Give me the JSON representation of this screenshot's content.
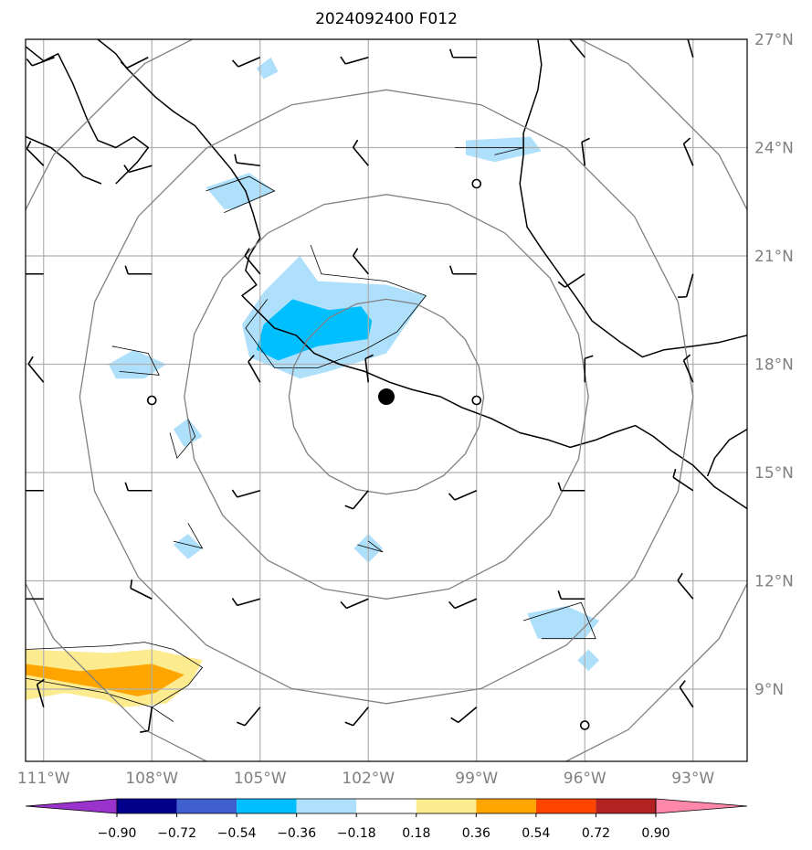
{
  "title": "2024092400 F012",
  "colors": {
    "gridline": "#b0b0b0",
    "range_ring": "#808080",
    "coastline": "#000000",
    "axis_label": "#808080",
    "center_marker": "#000000"
  },
  "lat_labels": [
    "27°N",
    "24°N",
    "21°N",
    "18°N",
    "15°N",
    "12°N",
    "9°N"
  ],
  "lon_labels": [
    "111°W",
    "108°W",
    "105°W",
    "102°W",
    "99°W",
    "96°W",
    "93°W"
  ],
  "colorbar": {
    "colors": [
      "#9933cc",
      "#00008b",
      "#3f5fcf",
      "#00bfff",
      "#afe0fb",
      "#ffffff",
      "#fdeb90",
      "#ffa500",
      "#ff4500",
      "#b22222",
      "#ff88aa"
    ],
    "tick_labels": [
      "−0.90",
      "−0.72",
      "−0.54",
      "−0.36",
      "−0.18",
      "0.18",
      "0.36",
      "0.54",
      "0.72",
      "0.90"
    ]
  },
  "chart_data": {
    "type": "map",
    "title": "2024092400 F012",
    "lon_range": [
      -111.5,
      -91.5
    ],
    "lat_range": [
      7,
      27
    ],
    "lon_ticks": [
      -111,
      -108,
      -105,
      -102,
      -99,
      -96,
      -93
    ],
    "lat_ticks": [
      27,
      24,
      21,
      18,
      15,
      12,
      9
    ],
    "center": {
      "lon": -101.5,
      "lat": 17.1
    },
    "range_ring_radii_deg": [
      2.7,
      5.6,
      8.5,
      11.4
    ],
    "contour_levels": [
      -0.9,
      -0.72,
      -0.54,
      -0.36,
      -0.18,
      0.18,
      0.36,
      0.54,
      0.72,
      0.9
    ],
    "station_circles": [
      {
        "lon": -99,
        "lat": 23
      },
      {
        "lon": -108,
        "lat": 17
      },
      {
        "lon": -99,
        "lat": 17
      },
      {
        "lon": -96,
        "lat": 8
      }
    ],
    "shaded_regions": [
      {
        "level": -0.18,
        "color": "#afe0fb",
        "lonlat": [
          [
            -105.1,
            26.2
          ],
          [
            -104.7,
            26.5
          ],
          [
            -104.5,
            26.1
          ],
          [
            -104.9,
            25.9
          ]
        ]
      },
      {
        "level": -0.18,
        "color": "#afe0fb",
        "lonlat": [
          [
            -106.5,
            22.9
          ],
          [
            -105.3,
            23.3
          ],
          [
            -104.6,
            22.8
          ],
          [
            -105.7,
            22.3
          ],
          [
            -106.0,
            22.3
          ]
        ]
      },
      {
        "level": -0.18,
        "color": "#afe0fb",
        "lonlat": [
          [
            -99.3,
            24.2
          ],
          [
            -97.5,
            24.3
          ],
          [
            -97.2,
            23.9
          ],
          [
            -98.5,
            23.6
          ],
          [
            -99.3,
            23.8
          ]
        ]
      },
      {
        "level": -0.18,
        "color": "#afe0fb",
        "lonlat": [
          [
            -103.9,
            21.0
          ],
          [
            -103.4,
            20.3
          ],
          [
            -101.5,
            20.2
          ],
          [
            -100.4,
            19.9
          ],
          [
            -101.5,
            18.3
          ],
          [
            -103.1,
            17.8
          ],
          [
            -103.9,
            17.6
          ],
          [
            -105.3,
            18.2
          ],
          [
            -105.5,
            19.1
          ],
          [
            -104.9,
            20.0
          ]
        ]
      },
      {
        "level": -0.18,
        "color": "#afe0fb",
        "lonlat": [
          [
            -109.2,
            18.0
          ],
          [
            -108.5,
            18.4
          ],
          [
            -107.6,
            18.0
          ],
          [
            -108.2,
            17.6
          ],
          [
            -109.0,
            17.6
          ]
        ]
      },
      {
        "level": -0.18,
        "color": "#afe0fb",
        "lonlat": [
          [
            -107.4,
            16.2
          ],
          [
            -107.0,
            16.5
          ],
          [
            -106.6,
            16.0
          ],
          [
            -107.1,
            15.7
          ]
        ]
      },
      {
        "level": -0.18,
        "color": "#afe0fb",
        "lonlat": [
          [
            -107.4,
            13.0
          ],
          [
            -107.0,
            13.3
          ],
          [
            -106.6,
            12.9
          ],
          [
            -107.0,
            12.6
          ]
        ]
      },
      {
        "level": -0.18,
        "color": "#afe0fb",
        "lonlat": [
          [
            -102.4,
            12.9
          ],
          [
            -102.0,
            13.3
          ],
          [
            -101.6,
            12.9
          ],
          [
            -102.0,
            12.5
          ]
        ]
      },
      {
        "level": -0.18,
        "color": "#afe0fb",
        "lonlat": [
          [
            -97.6,
            11.1
          ],
          [
            -96.5,
            11.3
          ],
          [
            -95.6,
            10.9
          ],
          [
            -96.0,
            10.4
          ],
          [
            -97.3,
            10.4
          ]
        ]
      },
      {
        "level": -0.18,
        "color": "#afe0fb",
        "lonlat": [
          [
            -96.2,
            9.8
          ],
          [
            -95.9,
            10.1
          ],
          [
            -95.6,
            9.8
          ],
          [
            -95.9,
            9.5
          ]
        ]
      },
      {
        "level": -0.36,
        "color": "#00bfff",
        "lonlat": [
          [
            -104.1,
            19.8
          ],
          [
            -103.1,
            19.5
          ],
          [
            -102.2,
            19.6
          ],
          [
            -101.9,
            19.2
          ],
          [
            -102.0,
            18.7
          ],
          [
            -103.4,
            18.5
          ],
          [
            -104.5,
            18.1
          ],
          [
            -105.1,
            18.4
          ],
          [
            -104.9,
            19.1
          ]
        ]
      },
      {
        "level": 0.36,
        "color": "#fdeb90",
        "lonlat": [
          [
            -111.5,
            10.1
          ],
          [
            -109.2,
            10.0
          ],
          [
            -108.0,
            10.1
          ],
          [
            -106.6,
            9.8
          ],
          [
            -106.9,
            9.2
          ],
          [
            -107.6,
            8.6
          ],
          [
            -108.8,
            8.5
          ],
          [
            -109.3,
            8.7
          ],
          [
            -110.4,
            8.9
          ],
          [
            -111.5,
            8.7
          ]
        ]
      },
      {
        "level": 0.54,
        "color": "#ffa500",
        "lonlat": [
          [
            -111.5,
            9.7
          ],
          [
            -110.0,
            9.5
          ],
          [
            -108.0,
            9.7
          ],
          [
            -107.1,
            9.4
          ],
          [
            -107.9,
            8.9
          ],
          [
            -108.4,
            8.8
          ],
          [
            -109.3,
            9.0
          ],
          [
            -110.4,
            9.2
          ],
          [
            -111.5,
            9.4
          ]
        ]
      }
    ],
    "wind_barbs": [
      {
        "lon": -110.7,
        "lat": 26.5,
        "u": 8,
        "v": 3
      },
      {
        "lon": -108.1,
        "lat": 26.5,
        "u": 6,
        "v": 3
      },
      {
        "lon": -105.0,
        "lat": 26.5,
        "u": 7,
        "v": 3
      },
      {
        "lon": -102.0,
        "lat": 26.5,
        "u": 7,
        "v": 2
      },
      {
        "lon": -99.0,
        "lat": 26.5,
        "u": 8,
        "v": 0
      },
      {
        "lon": -96.0,
        "lat": 26.5,
        "u": 5,
        "v": -6
      },
      {
        "lon": -93.0,
        "lat": 26.5,
        "u": 2,
        "v": -7
      },
      {
        "lon": -111.0,
        "lat": 23.5,
        "u": 6,
        "v": -6
      },
      {
        "lon": -108.0,
        "lat": 23.5,
        "u": 7,
        "v": 2
      },
      {
        "lon": -105.0,
        "lat": 23.5,
        "u": 8,
        "v": -1
      },
      {
        "lon": -102.0,
        "lat": 23.5,
        "u": 5,
        "v": -6
      },
      {
        "lon": -96.0,
        "lat": 23.5,
        "u": 1,
        "v": -8
      },
      {
        "lon": -93.0,
        "lat": 23.5,
        "u": 3,
        "v": -7
      },
      {
        "lon": -111.0,
        "lat": 20.5,
        "u": 8,
        "v": 0
      },
      {
        "lon": -108.0,
        "lat": 20.5,
        "u": 8,
        "v": 0
      },
      {
        "lon": -105.0,
        "lat": 20.5,
        "u": 5,
        "v": -6
      },
      {
        "lon": -102.0,
        "lat": 20.5,
        "u": 5,
        "v": -6
      },
      {
        "lon": -99.0,
        "lat": 20.5,
        "u": 7,
        "v": 0
      },
      {
        "lon": -96.0,
        "lat": 20.5,
        "u": 6,
        "v": 4
      },
      {
        "lon": -93.0,
        "lat": 20.5,
        "u": 2,
        "v": 7
      },
      {
        "lon": -111.0,
        "lat": 17.5,
        "u": 5,
        "v": -6
      },
      {
        "lon": -105.0,
        "lat": 17.5,
        "u": 4,
        "v": -7
      },
      {
        "lon": -102.0,
        "lat": 17.5,
        "u": 1,
        "v": -8
      },
      {
        "lon": -96.0,
        "lat": 17.5,
        "u": 0,
        "v": -8
      },
      {
        "lon": -93.0,
        "lat": 17.5,
        "u": 3,
        "v": -7
      },
      {
        "lon": -111.0,
        "lat": 14.5,
        "u": 8,
        "v": 0
      },
      {
        "lon": -108.0,
        "lat": 14.5,
        "u": 8,
        "v": 0
      },
      {
        "lon": -105.0,
        "lat": 14.5,
        "u": 7,
        "v": 2
      },
      {
        "lon": -102.0,
        "lat": 14.5,
        "u": 5,
        "v": 6
      },
      {
        "lon": -99.0,
        "lat": 14.5,
        "u": 7,
        "v": 3
      },
      {
        "lon": -96.0,
        "lat": 14.5,
        "u": 8,
        "v": 0
      },
      {
        "lon": -93.0,
        "lat": 14.5,
        "u": 6,
        "v": -4
      },
      {
        "lon": -111.0,
        "lat": 11.5,
        "u": 8,
        "v": 0
      },
      {
        "lon": -108.0,
        "lat": 11.5,
        "u": 6,
        "v": -3
      },
      {
        "lon": -105.0,
        "lat": 11.5,
        "u": 7,
        "v": 2
      },
      {
        "lon": -102.0,
        "lat": 11.5,
        "u": 7,
        "v": 3
      },
      {
        "lon": -99.0,
        "lat": 11.5,
        "u": 7,
        "v": 3
      },
      {
        "lon": -96.0,
        "lat": 11.5,
        "u": 8,
        "v": 0
      },
      {
        "lon": -93.0,
        "lat": 11.5,
        "u": 5,
        "v": -6
      },
      {
        "lon": -111.0,
        "lat": 8.5,
        "u": 2,
        "v": -7
      },
      {
        "lon": -108.0,
        "lat": 8.5,
        "u": 1,
        "v": 7
      },
      {
        "lon": -105.0,
        "lat": 8.5,
        "u": 5,
        "v": 6
      },
      {
        "lon": -102.0,
        "lat": 8.5,
        "u": 5,
        "v": 6
      },
      {
        "lon": -99.0,
        "lat": 8.5,
        "u": 6,
        "v": 5
      },
      {
        "lon": -93.0,
        "lat": 8.5,
        "u": 4,
        "v": -6
      }
    ],
    "coastlines": [
      [
        [
          -111.5,
          26.8
        ],
        [
          -111.0,
          26.4
        ],
        [
          -110.6,
          26.6
        ],
        [
          -110.4,
          26.2
        ],
        [
          -110.2,
          25.8
        ],
        [
          -110.0,
          25.3
        ],
        [
          -109.8,
          24.8
        ],
        [
          -109.5,
          24.2
        ],
        [
          -109.0,
          24.0
        ],
        [
          -108.5,
          24.3
        ],
        [
          -108.1,
          24.0
        ],
        [
          -108.4,
          23.6
        ],
        [
          -109.0,
          23.0
        ]
      ],
      [
        [
          -111.5,
          24.3
        ],
        [
          -110.8,
          24.0
        ],
        [
          -110.3,
          23.6
        ],
        [
          -109.9,
          23.2
        ],
        [
          -109.4,
          23.0
        ]
      ],
      [
        [
          -109.5,
          27.0
        ],
        [
          -109.0,
          26.6
        ],
        [
          -108.7,
          26.2
        ],
        [
          -108.3,
          25.8
        ],
        [
          -107.9,
          25.4
        ],
        [
          -107.4,
          25.0
        ],
        [
          -106.8,
          24.6
        ],
        [
          -106.3,
          24.0
        ],
        [
          -105.8,
          23.4
        ],
        [
          -105.4,
          22.8
        ],
        [
          -105.2,
          22.2
        ],
        [
          -105.0,
          21.5
        ],
        [
          -105.3,
          21.0
        ],
        [
          -105.4,
          20.6
        ],
        [
          -105.1,
          20.2
        ],
        [
          -105.5,
          19.9
        ],
        [
          -105.0,
          19.4
        ],
        [
          -104.6,
          19.0
        ],
        [
          -104.0,
          18.8
        ],
        [
          -103.5,
          18.3
        ],
        [
          -102.8,
          18.0
        ],
        [
          -102.1,
          17.8
        ],
        [
          -101.4,
          17.5
        ],
        [
          -100.8,
          17.3
        ],
        [
          -100.0,
          17.1
        ],
        [
          -99.4,
          16.8
        ],
        [
          -98.6,
          16.5
        ],
        [
          -97.8,
          16.1
        ],
        [
          -97.0,
          15.9
        ],
        [
          -96.4,
          15.7
        ],
        [
          -95.7,
          15.9
        ],
        [
          -95.2,
          16.1
        ],
        [
          -94.6,
          16.3
        ],
        [
          -94.1,
          16.0
        ],
        [
          -93.6,
          15.6
        ],
        [
          -93.0,
          15.2
        ],
        [
          -92.4,
          14.6
        ],
        [
          -91.5,
          14.0
        ]
      ],
      [
        [
          -97.3,
          27.0
        ],
        [
          -97.2,
          26.3
        ],
        [
          -97.3,
          25.6
        ],
        [
          -97.5,
          25.0
        ],
        [
          -97.7,
          24.4
        ],
        [
          -97.7,
          23.8
        ],
        [
          -97.8,
          23.0
        ],
        [
          -97.7,
          22.4
        ],
        [
          -97.6,
          21.8
        ],
        [
          -97.2,
          21.2
        ],
        [
          -96.7,
          20.5
        ],
        [
          -96.2,
          19.8
        ],
        [
          -95.8,
          19.2
        ],
        [
          -95.0,
          18.6
        ],
        [
          -94.4,
          18.2
        ],
        [
          -93.8,
          18.4
        ],
        [
          -93.0,
          18.5
        ],
        [
          -92.3,
          18.6
        ],
        [
          -91.5,
          18.8
        ]
      ],
      [
        [
          -91.5,
          16.2
        ],
        [
          -92.0,
          15.9
        ],
        [
          -92.4,
          15.4
        ],
        [
          -92.6,
          14.9
        ]
      ]
    ],
    "contour_outlines_thin": [
      [
        [
          -103.6,
          21.3
        ],
        [
          -103.3,
          20.5
        ],
        [
          -101.5,
          20.3
        ],
        [
          -100.4,
          19.9
        ],
        [
          -101.2,
          18.9
        ],
        [
          -102.1,
          18.4
        ],
        [
          -103.4,
          17.9
        ],
        [
          -104.6,
          17.9
        ],
        [
          -105.4,
          19.0
        ],
        [
          -104.8,
          19.8
        ]
      ],
      [
        [
          -106.5,
          22.8
        ],
        [
          -105.3,
          23.2
        ],
        [
          -104.6,
          22.8
        ],
        [
          -106.0,
          22.2
        ]
      ],
      [
        [
          -99.6,
          24.0
        ],
        [
          -97.7,
          24.0
        ],
        [
          -98.5,
          23.8
        ]
      ],
      [
        [
          -109.1,
          18.5
        ],
        [
          -108.1,
          18.3
        ],
        [
          -107.8,
          17.7
        ],
        [
          -108.9,
          17.8
        ]
      ],
      [
        [
          -107.0,
          16.5
        ],
        [
          -106.8,
          16.0
        ],
        [
          -107.3,
          15.4
        ],
        [
          -107.5,
          16.1
        ]
      ],
      [
        [
          -107.0,
          13.6
        ],
        [
          -106.6,
          12.9
        ],
        [
          -107.4,
          13.1
        ]
      ],
      [
        [
          -102.3,
          13.0
        ],
        [
          -101.6,
          12.8
        ],
        [
          -102.0,
          13.1
        ]
      ],
      [
        [
          -97.7,
          10.9
        ],
        [
          -96.1,
          11.4
        ],
        [
          -95.7,
          10.4
        ],
        [
          -97.2,
          10.4
        ]
      ],
      [
        [
          -111.5,
          10.1
        ],
        [
          -109.2,
          10.2
        ],
        [
          -108.2,
          10.3
        ],
        [
          -107.4,
          10.1
        ],
        [
          -106.6,
          9.6
        ],
        [
          -107.0,
          9.1
        ],
        [
          -108.0,
          8.5
        ],
        [
          -109.3,
          8.9
        ],
        [
          -110.4,
          9.1
        ],
        [
          -111.5,
          9.3
        ]
      ],
      [
        [
          -108.0,
          8.5
        ],
        [
          -107.4,
          8.1
        ]
      ]
    ]
  }
}
